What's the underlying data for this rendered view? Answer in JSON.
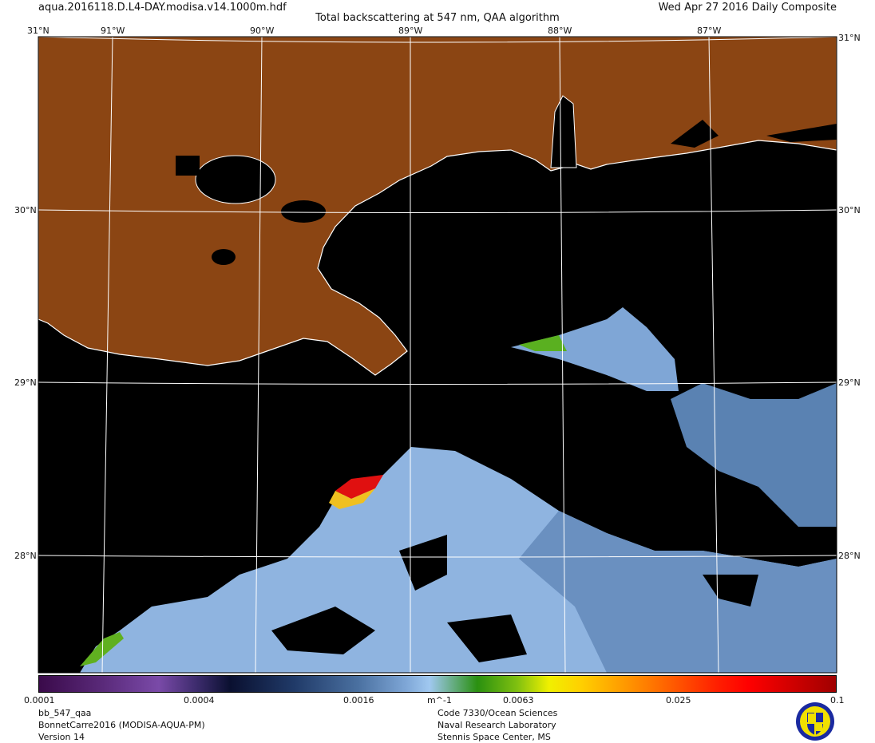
{
  "header": {
    "filename": "aqua.2016118.D.L4-DAY.modisa.v14.1000m.hdf",
    "date": "Wed Apr 27 2016 Daily Composite",
    "title": "Total backscattering at 547 nm, QAA algorithm"
  },
  "map": {
    "lon_labels": [
      "91°W",
      "90°W",
      "89°W",
      "88°W",
      "87°W"
    ],
    "lat_labels": [
      "31°N",
      "30°N",
      "29°N",
      "28°N"
    ],
    "corner_label": "31°N",
    "colors": {
      "land": "#8b4513",
      "ocean": "#000000",
      "coast": "#ffffff",
      "grid": "#ffffff",
      "low_backscatter": "#8fb4e0",
      "mid_backscatter": "#5c85b5",
      "high_backscatter": "#e00000"
    }
  },
  "colorbar": {
    "scale": "log",
    "range": [
      0.0001,
      0.1
    ],
    "tick_labels": [
      "0.0001",
      "0.0004",
      "0.0016",
      "0.0063",
      "0.025",
      "0.1"
    ],
    "tick_values": [
      0.0001,
      0.0004,
      0.0016,
      0.0063,
      0.025,
      0.1
    ],
    "units": "m^-1"
  },
  "footer": {
    "left": [
      "bb_547_qaa",
      "BonnetCarre2016 (MODISA-AQUA-PM)",
      "Version 14"
    ],
    "center": [
      "Code 7330/Ocean Sciences",
      "Naval Research Laboratory",
      "Stennis Space Center, MS"
    ],
    "logo": "Naval Research Laboratory seal"
  }
}
